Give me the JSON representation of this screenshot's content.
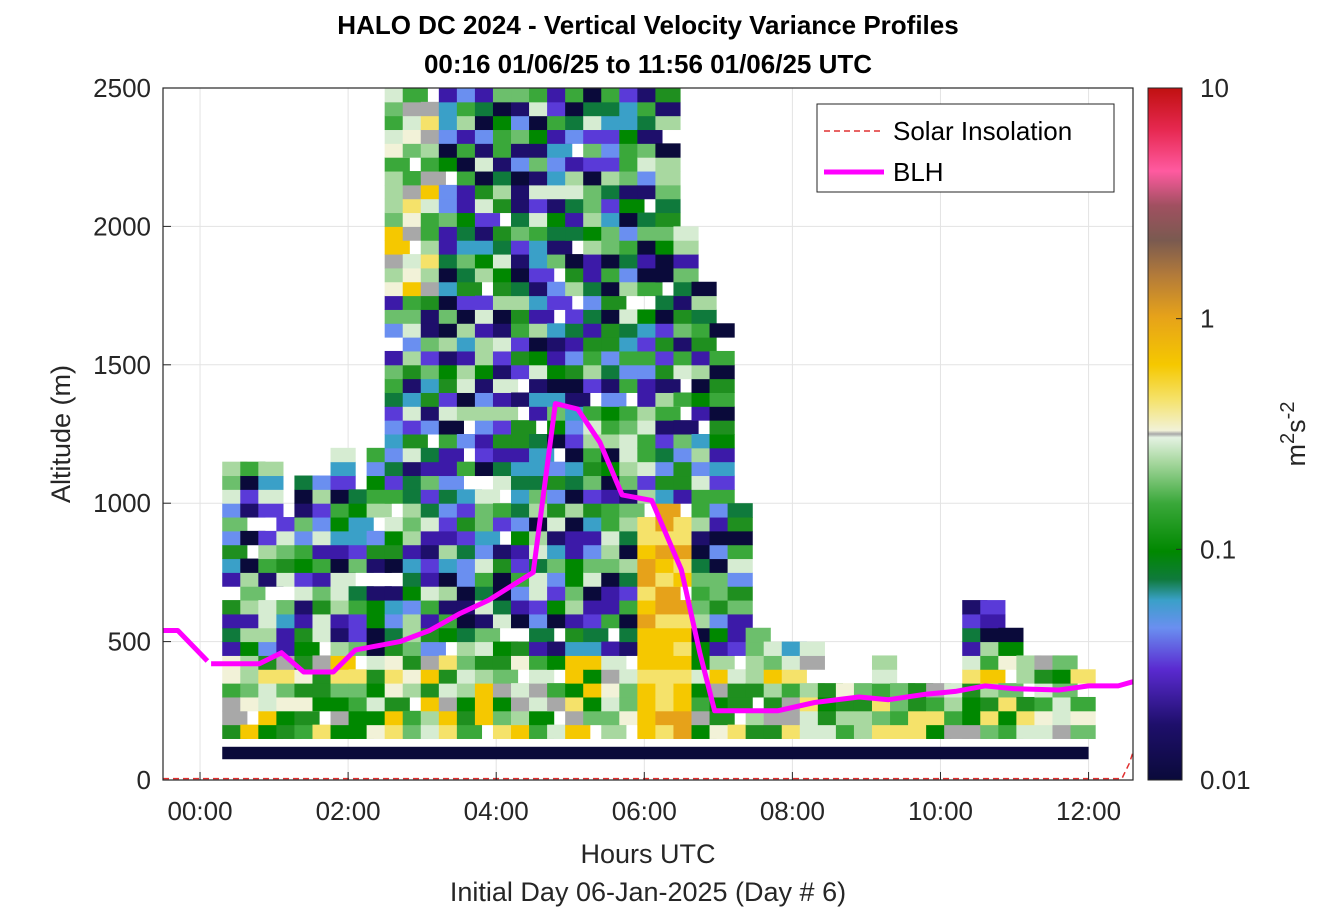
{
  "chart_data": {
    "type": "heatmap",
    "title": "HALO DC 2024 - Vertical Velocity Variance Profiles",
    "subtitle": "00:16 01/06/25 to 11:56 01/06/25  UTC",
    "xlabel": "Hours UTC",
    "xlabel2": "Initial Day 06-Jan-2025 (Day # 6)",
    "ylabel": "Altitude (m)",
    "colorbar_label": "m^2 s^-2",
    "colorbar_scale": "log",
    "clim": [
      0.01,
      10
    ],
    "colorbar_ticks": [
      "0.01",
      "0.1",
      "1",
      "10"
    ],
    "xlim": [
      -0.5,
      12.6
    ],
    "ylim": [
      0,
      2500
    ],
    "x_ticks": [
      "00:00",
      "02:00",
      "04:00",
      "06:00",
      "08:00",
      "10:00",
      "12:00"
    ],
    "y_ticks": [
      "0",
      "500",
      "1000",
      "1500",
      "2000",
      "2500"
    ],
    "grid": true,
    "legend_position": "top-right",
    "legend": [
      "Solar Insolation",
      "BLH"
    ],
    "series": [
      {
        "name": "BLH",
        "color": "#ff00ff",
        "x": [
          -0.5,
          -0.3,
          0.1,
          0.15,
          0.5,
          0.8,
          1.1,
          1.4,
          1.8,
          2.1,
          2.7,
          3.1,
          3.5,
          3.9,
          4.2,
          4.5,
          4.8,
          5.1,
          5.4,
          5.7,
          6.1,
          6.5,
          6.75,
          6.95,
          7.2,
          7.8,
          8.3,
          8.9,
          9.3,
          9.8,
          10.2,
          10.6,
          11.0,
          11.6,
          12.0,
          12.4,
          12.6
        ],
        "y": [
          540,
          540,
          430,
          420,
          420,
          420,
          460,
          390,
          390,
          470,
          500,
          540,
          600,
          650,
          700,
          750,
          1360,
          1340,
          1220,
          1030,
          1010,
          760,
          460,
          250,
          250,
          250,
          280,
          300,
          290,
          310,
          320,
          340,
          330,
          325,
          340,
          340,
          355
        ]
      },
      {
        "name": "Solar Insolation",
        "color": "#e03030",
        "x": [
          -0.5,
          12.45,
          12.55,
          12.6
        ],
        "y": [
          5,
          5,
          60,
          100
        ]
      }
    ],
    "noise_floor": {
      "x_start": 0.3,
      "x_end": 12.0,
      "y": 120,
      "value": 0.01
    },
    "cell_size": {
      "dx": 0.333,
      "dy": 50
    },
    "column_tops_m": [
      1150,
      1150,
      1150,
      950,
      1100,
      1100,
      1180,
      1050,
      1180,
      2500,
      2500,
      2500,
      2500,
      2500,
      2500,
      2500,
      2500,
      2500,
      2500,
      2500,
      2500,
      2500,
      2500,
      2500,
      2500,
      2000,
      1800,
      1700,
      1000,
      550,
      470,
      470,
      470,
      320,
      320,
      320,
      420,
      320,
      320,
      320,
      350,
      650,
      650,
      550,
      450,
      450,
      420,
      450
    ]
  }
}
